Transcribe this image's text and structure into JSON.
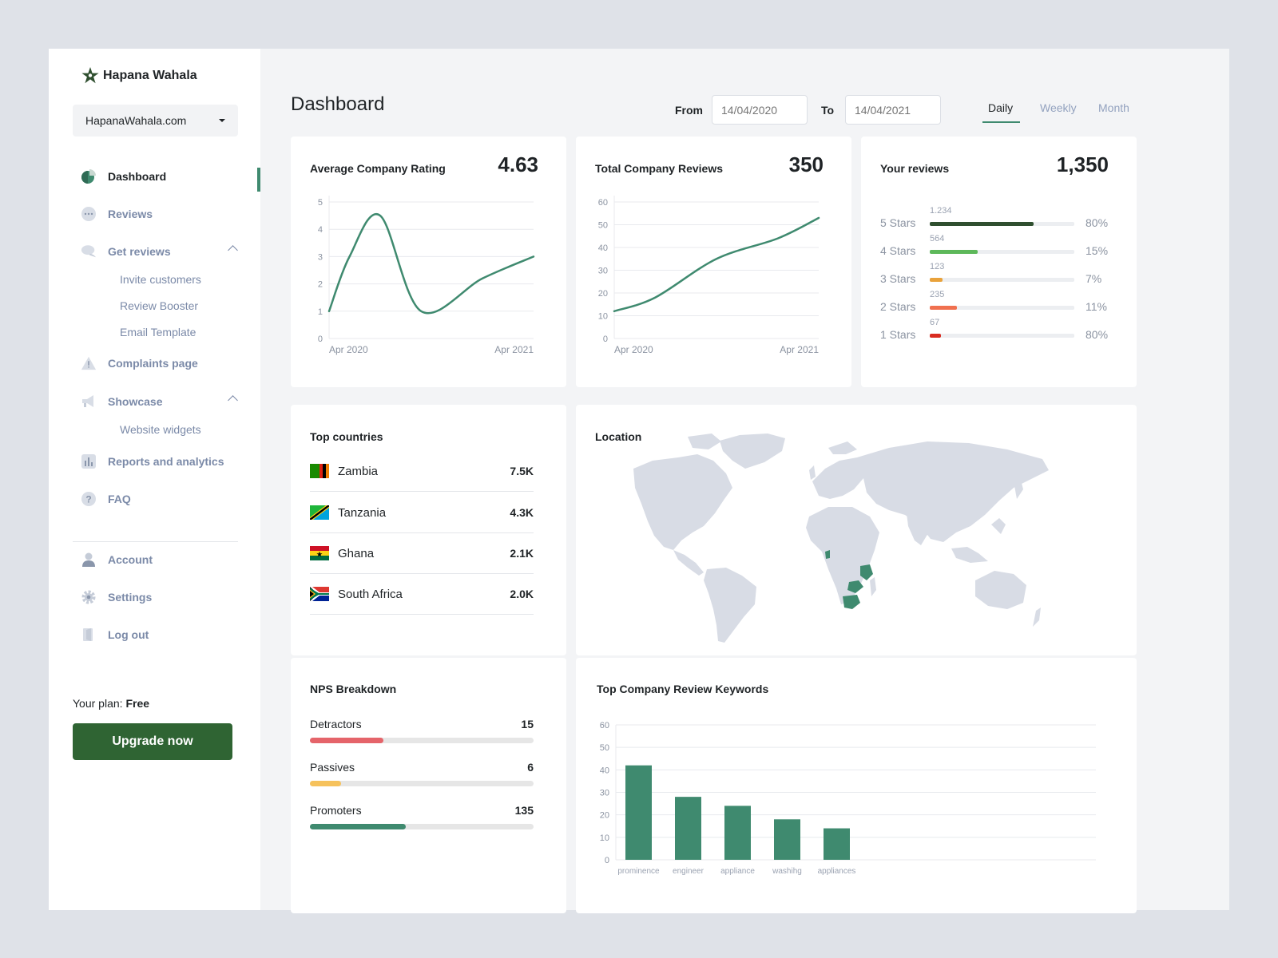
{
  "brand": {
    "name": "Hapana Wahala"
  },
  "site_selector": {
    "value": "HapanaWahala.com"
  },
  "sidebar": {
    "items": [
      {
        "label": "Dashboard",
        "icon": "pie-chart-icon",
        "active": true
      },
      {
        "label": "Reviews",
        "icon": "chat-dots-icon"
      },
      {
        "label": "Get reviews",
        "icon": "speech-bubbles-icon",
        "expanded": true,
        "children": [
          "Invite customers",
          "Review Booster",
          "Email Template"
        ]
      },
      {
        "label": "Complaints page",
        "icon": "warning-icon"
      },
      {
        "label": "Showcase",
        "icon": "megaphone-icon",
        "expanded": true,
        "children": [
          "Website widgets"
        ]
      },
      {
        "label": "Reports and analytics",
        "icon": "bar-chart-icon"
      },
      {
        "label": "FAQ",
        "icon": "question-icon"
      },
      {
        "label": "Account",
        "icon": "user-icon"
      },
      {
        "label": "Settings",
        "icon": "gear-icon"
      },
      {
        "label": "Log out",
        "icon": "logout-icon"
      }
    ],
    "plan_label": "Your plan:",
    "plan_value": "Free",
    "upgrade_label": "Upgrade now"
  },
  "header": {
    "title": "Dashboard",
    "from_label": "From",
    "from_placeholder": "14/04/2020",
    "to_label": "To",
    "to_placeholder": "14/04/2021",
    "periods": [
      "Daily",
      "Weekly",
      "Month"
    ],
    "active_period": "Daily"
  },
  "colors": {
    "accent": "#3f8a6f",
    "brand_dark": "#2f6433",
    "map_land": "#d8dce5",
    "map_highlight": "#3f8a6f"
  },
  "cards": {
    "rating": {
      "title": "Average Company Rating",
      "value": "4.63"
    },
    "total": {
      "title": "Total Company Reviews",
      "value": "350"
    },
    "yours": {
      "title": "Your reviews",
      "value": "1,350",
      "rows": [
        {
          "label": "5 Stars",
          "count": "1.234",
          "pct": "80%",
          "fill": 0.72,
          "color": "#2f4f2f"
        },
        {
          "label": "4 Stars",
          "count": "564",
          "pct": "15%",
          "fill": 0.33,
          "color": "#5db85a"
        },
        {
          "label": "3 Stars",
          "count": "123",
          "pct": "7%",
          "fill": 0.09,
          "color": "#e9a23b"
        },
        {
          "label": "2 Stars",
          "count": "235",
          "pct": "11%",
          "fill": 0.19,
          "color": "#f0704f"
        },
        {
          "label": "1 Stars",
          "count": "67",
          "pct": "80%",
          "fill": 0.08,
          "color": "#d92c20"
        }
      ]
    },
    "countries": {
      "title": "Top countries",
      "rows": [
        {
          "name": "Zambia",
          "value": "7.5K",
          "flag": "zambia-flag-icon"
        },
        {
          "name": "Tanzania",
          "value": "4.3K",
          "flag": "tanzania-flag-icon"
        },
        {
          "name": "Ghana",
          "value": "2.1K",
          "flag": "ghana-flag-icon"
        },
        {
          "name": "South Africa",
          "value": "2.0K",
          "flag": "south-africa-flag-icon"
        }
      ]
    },
    "location": {
      "title": "Location"
    },
    "nps": {
      "title": "NPS Breakdown",
      "rows": [
        {
          "label": "Detractors",
          "value": "15",
          "fill": 0.33,
          "color": "#e5646a"
        },
        {
          "label": "Passives",
          "value": "6",
          "fill": 0.14,
          "color": "#f6c25c"
        },
        {
          "label": "Promoters",
          "value": "135",
          "fill": 0.43,
          "color": "#3f8a6f"
        }
      ]
    },
    "keywords": {
      "title": "Top Company Review Keywords"
    }
  },
  "chart_data": [
    {
      "type": "line",
      "title": "Average Company Rating",
      "x_tick_labels": [
        "Apr 2020",
        "Apr 2021"
      ],
      "x": [
        0,
        0.1,
        0.25,
        0.45,
        0.75,
        1.0
      ],
      "y": [
        1.0,
        3.0,
        4.5,
        1.0,
        2.2,
        3.0
      ],
      "ylim": [
        0,
        5
      ],
      "yticks": [
        0,
        1,
        2,
        3,
        4,
        5
      ],
      "grid": true
    },
    {
      "type": "line",
      "title": "Total Company Reviews",
      "x_tick_labels": [
        "Apr 2020",
        "Apr 2021"
      ],
      "x": [
        0,
        0.2,
        0.5,
        0.8,
        1.0
      ],
      "y": [
        12,
        18,
        35,
        44,
        53
      ],
      "ylim": [
        0,
        60
      ],
      "yticks": [
        0,
        10,
        20,
        30,
        40,
        50,
        60
      ],
      "grid": true
    },
    {
      "type": "bar",
      "title": "Top Company Review Keywords",
      "categories": [
        "prominence",
        "engineer",
        "appliance",
        "washihg",
        "appliances"
      ],
      "values": [
        42,
        28,
        24,
        18,
        14
      ],
      "ylim": [
        0,
        60
      ],
      "yticks": [
        0,
        10,
        20,
        30,
        40,
        50,
        60
      ],
      "grid": true
    }
  ]
}
